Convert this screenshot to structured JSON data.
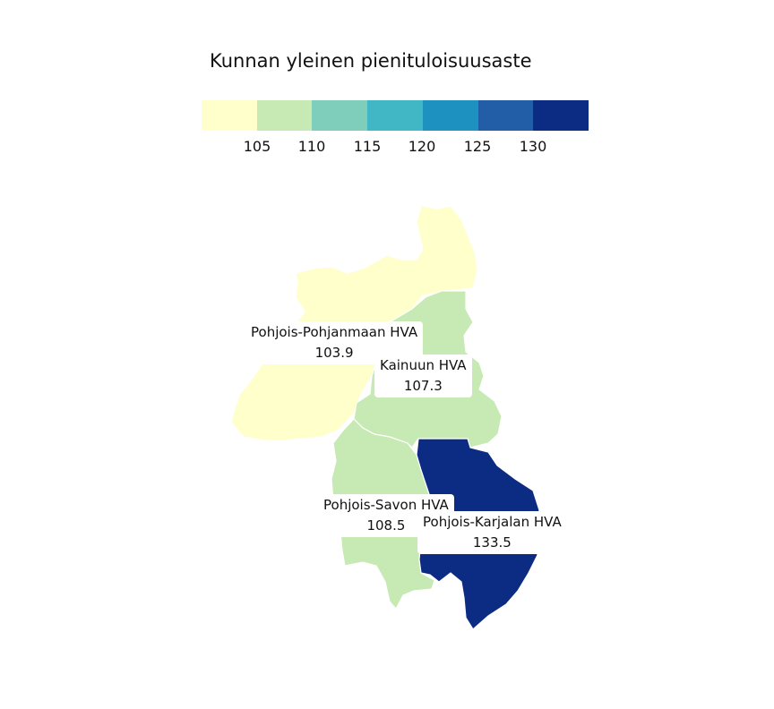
{
  "legend": {
    "title": "Kunnan yleinen pienituloisuusaste",
    "colors": [
      "#ffffcc",
      "#c7e9b4",
      "#7fcdbb",
      "#41b6c4",
      "#1d91c0",
      "#225ea8",
      "#0c2c84"
    ],
    "ticks": [
      "105",
      "110",
      "115",
      "120",
      "125",
      "130"
    ]
  },
  "regions": [
    {
      "name": "Pohjois-Pohjanmaan HVA",
      "value": "103.9",
      "color": "#ffffcc"
    },
    {
      "name": "Kainuun HVA",
      "value": "107.3",
      "color": "#c7e9b4"
    },
    {
      "name": "Pohjois-Savon HVA",
      "value": "108.5",
      "color": "#c7e9b4"
    },
    {
      "name": "Pohjois-Karjalan HVA",
      "value": "133.5",
      "color": "#0c2c84"
    }
  ]
}
